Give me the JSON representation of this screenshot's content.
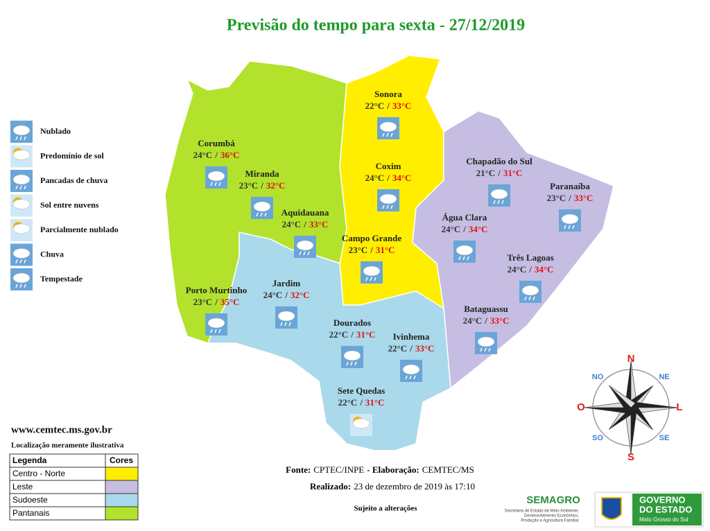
{
  "title": "Previsão do tempo para sexta - 27/12/2019",
  "temp_separator": "/",
  "cities": [
    {
      "name": "Corumbá",
      "min": "24°C",
      "max": "36°C"
    },
    {
      "name": "Miranda",
      "min": "23°C",
      "max": "32°C"
    },
    {
      "name": "Aquidauana",
      "min": "24°C",
      "max": "33°C"
    },
    {
      "name": "Porto Murtinho",
      "min": "23°C",
      "max": "35°C"
    },
    {
      "name": "Jardim",
      "min": "24°C",
      "max": "32°C"
    },
    {
      "name": "Sonora",
      "min": "22°C",
      "max": "33°C"
    },
    {
      "name": "Coxim",
      "min": "24°C",
      "max": "34°C"
    },
    {
      "name": "Campo Grande",
      "min": "23°C",
      "max": "31°C"
    },
    {
      "name": "Dourados",
      "min": "22°C",
      "max": "31°C"
    },
    {
      "name": "Ivinhema",
      "min": "22°C",
      "max": "33°C"
    },
    {
      "name": "Sete Quedas",
      "min": "22°C",
      "max": "31°C"
    },
    {
      "name": "Chapadão do Sul",
      "min": "21°C",
      "max": "31°C"
    },
    {
      "name": "Paranaíba",
      "min": "23°C",
      "max": "33°C"
    },
    {
      "name": "Água Clara",
      "min": "24°C",
      "max": "34°C"
    },
    {
      "name": "Três Lagoas",
      "min": "24°C",
      "max": "34°C"
    },
    {
      "name": "Bataguassu",
      "min": "24°C",
      "max": "33°C"
    }
  ],
  "icon_legend": [
    "Nublado",
    "Predomínio de sol",
    "Pancadas de chuva",
    "Sol entre nuvens",
    "Parcialmente nublado",
    "Chuva",
    "Tempestade"
  ],
  "website": "www.cemtec.ms.gov.br",
  "note": "Localização meramente ilustrativa",
  "region_table": {
    "header": [
      "Legenda",
      "Cores"
    ],
    "rows": [
      {
        "name": "Centro - Norte",
        "color": "#ffee00"
      },
      {
        "name": "Leste",
        "color": "#c6bde3"
      },
      {
        "name": "Sudoeste",
        "color": "#a9d9ea"
      },
      {
        "name": "Pantanais",
        "color": "#b2e22c"
      }
    ]
  },
  "footer": {
    "fonte_label": "Fonte:",
    "fonte": "CPTEC/INPE",
    "elab_label": "- Elaboração:",
    "elab": "CEMTEC/MS",
    "realizado_label": "Realizado:",
    "realizado": "23 de dezembro de 2019 às 17:10",
    "sujeito": "Sujeito a alterações"
  },
  "compass": [
    "N",
    "NE",
    "L",
    "SE",
    "S",
    "SO",
    "O",
    "NO"
  ],
  "logos": {
    "semagro": "SEMAGRO",
    "semagro_sub": [
      "Secretaria de Estado de Meio Ambiente,",
      "Desenvolvimento Econômico,",
      "Produção e Agricultura Familiar"
    ],
    "governo": [
      "GOVERNO",
      "DO ESTADO"
    ],
    "estado": "Mato Grosso do Sul"
  }
}
